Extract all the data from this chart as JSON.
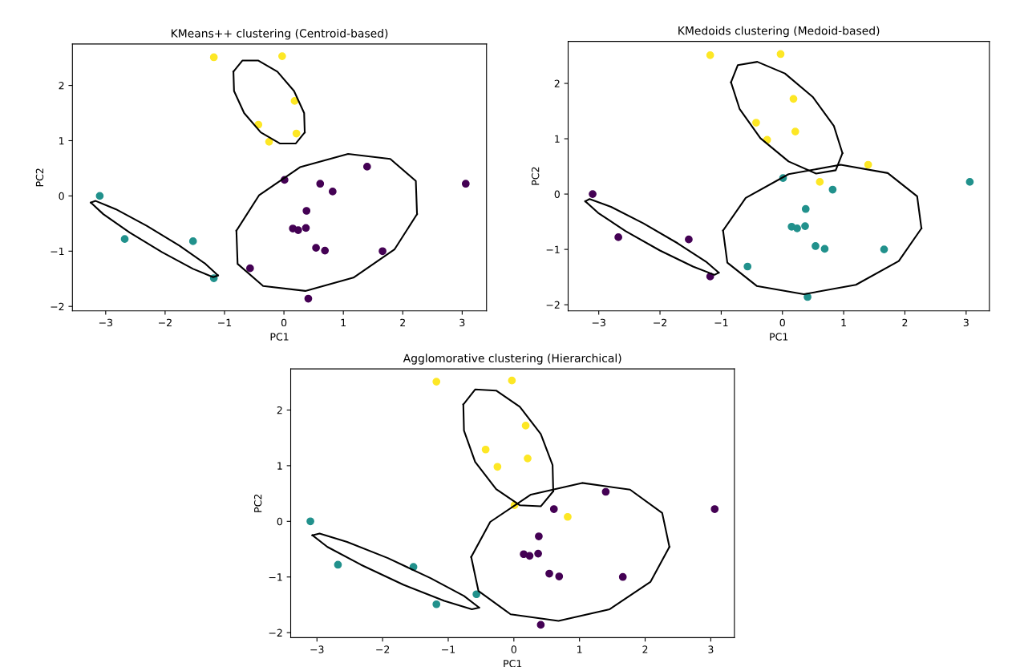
{
  "chart_data": [
    {
      "type": "scatter",
      "title": "KMeans++ clustering (Centroid-based)",
      "xlabel": "PC1",
      "ylabel": "PC2",
      "xlim": [
        -3.56,
        3.41
      ],
      "ylim": [
        -2.08,
        2.75
      ],
      "xticks": [
        -3,
        -2,
        -1,
        0,
        1,
        2,
        3
      ],
      "yticks": [
        -2,
        -1,
        0,
        1,
        2
      ],
      "grid": false,
      "marker": "circle",
      "series": [
        {
          "color": "#fde725",
          "x": [
            -1.18,
            -0.03,
            0.18,
            -0.43,
            0.21,
            -0.25
          ],
          "values": [
            2.51,
            2.53,
            1.72,
            1.29,
            1.13,
            0.98
          ]
        },
        {
          "color": "#21918c",
          "x": [
            -3.1,
            -2.68,
            -1.53,
            -1.18
          ],
          "values": [
            0.0,
            -0.78,
            -0.82,
            -1.49
          ]
        },
        {
          "color": "#440154",
          "x": [
            0.01,
            0.61,
            0.82,
            1.4,
            3.06,
            0.38,
            0.15,
            0.24,
            0.37,
            0.54,
            0.69,
            1.66,
            -0.57,
            0.41
          ],
          "values": [
            0.29,
            0.22,
            0.08,
            0.53,
            0.22,
            -0.27,
            -0.59,
            -0.62,
            -0.58,
            -0.94,
            -0.99,
            -1.0,
            -1.31,
            -1.86
          ]
        },
        {
          "type": "line",
          "color": "#000000",
          "line_style": "solid",
          "marker": "none",
          "x": [
            -0.85,
            -0.7,
            -0.43,
            -0.11,
            0.17,
            0.34,
            0.35
          ],
          "values": [
            2.25,
            2.45,
            2.45,
            2.25,
            1.9,
            1.5,
            1.15
          ]
        },
        {
          "type": "line",
          "color": "#000000",
          "line_style": "solid",
          "marker": "none",
          "x": [
            -0.85,
            -0.84,
            -0.67,
            -0.39,
            -0.07,
            0.2,
            0.35
          ],
          "values": [
            2.25,
            1.9,
            1.5,
            1.15,
            0.95,
            0.95,
            1.15
          ]
        },
        {
          "type": "line",
          "color": "#000000",
          "line_style": "solid",
          "marker": "none",
          "x": [
            -3.25,
            -3.17,
            -2.83,
            -2.31,
            -1.76,
            -1.32,
            -1.11
          ],
          "values": [
            -0.12,
            -0.09,
            -0.24,
            -0.54,
            -0.9,
            -1.23,
            -1.44
          ]
        },
        {
          "type": "line",
          "color": "#000000",
          "line_style": "solid",
          "marker": "none",
          "x": [
            -3.25,
            -3.04,
            -2.6,
            -2.05,
            -1.53,
            -1.19,
            -1.11
          ],
          "values": [
            -0.12,
            -0.33,
            -0.66,
            -1.02,
            -1.32,
            -1.47,
            -1.44
          ]
        },
        {
          "type": "line",
          "color": "#000000",
          "line_style": "solid",
          "marker": "none",
          "x": [
            -0.8,
            -0.42,
            0.27,
            1.08,
            1.79,
            2.22,
            2.24
          ],
          "values": [
            -0.63,
            0.01,
            0.52,
            0.76,
            0.67,
            0.27,
            -0.33
          ]
        },
        {
          "type": "line",
          "color": "#000000",
          "line_style": "solid",
          "marker": "none",
          "x": [
            -0.8,
            -0.78,
            -0.35,
            0.36,
            1.17,
            1.86,
            2.24
          ],
          "values": [
            -0.63,
            -1.23,
            -1.63,
            -1.72,
            -1.48,
            -0.97,
            -0.33
          ]
        }
      ]
    },
    {
      "type": "scatter",
      "title": "KMedoids clustering (Medoid-based)",
      "xlabel": "PC1",
      "ylabel": "PC2",
      "xlim": [
        -3.5,
        3.38
      ],
      "ylim": [
        -2.11,
        2.76
      ],
      "xticks": [
        -3,
        -2,
        -1,
        0,
        1,
        2,
        3
      ],
      "yticks": [
        -2,
        -1,
        0,
        1,
        2
      ],
      "grid": false,
      "marker": "circle",
      "series": [
        {
          "color": "#fde725",
          "x": [
            -1.18,
            -0.03,
            0.18,
            -0.43,
            0.21,
            -0.25,
            1.4,
            0.61
          ],
          "values": [
            2.51,
            2.53,
            1.72,
            1.29,
            1.13,
            0.98,
            0.53,
            0.22
          ]
        },
        {
          "color": "#21918c",
          "x": [
            0.01,
            0.82,
            3.06,
            0.38,
            0.15,
            0.24,
            0.37,
            0.54,
            0.69,
            1.66,
            -0.57,
            0.41
          ],
          "values": [
            0.29,
            0.08,
            0.22,
            -0.27,
            -0.59,
            -0.62,
            -0.58,
            -0.94,
            -0.99,
            -1.0,
            -1.31,
            -1.86
          ]
        },
        {
          "color": "#440154",
          "x": [
            -3.1,
            -2.68,
            -1.53,
            -1.18
          ],
          "values": [
            0.0,
            -0.78,
            -0.82,
            -1.49
          ]
        },
        {
          "type": "line",
          "color": "#000000",
          "line_style": "solid",
          "marker": "none",
          "x": [
            -0.84,
            -0.73,
            -0.41,
            0.04,
            0.5,
            0.84,
            0.98
          ],
          "values": [
            2.02,
            2.33,
            2.39,
            2.18,
            1.75,
            1.23,
            0.74
          ]
        },
        {
          "type": "line",
          "color": "#000000",
          "line_style": "solid",
          "marker": "none",
          "x": [
            -0.84,
            -0.7,
            -0.36,
            0.1,
            0.55,
            0.87,
            0.98
          ],
          "values": [
            2.02,
            1.54,
            1.01,
            0.59,
            0.37,
            0.43,
            0.74
          ]
        },
        {
          "type": "line",
          "color": "#000000",
          "line_style": "solid",
          "marker": "none",
          "x": [
            -3.22,
            -3.15,
            -2.8,
            -2.27,
            -1.71,
            -1.25,
            -1.04
          ],
          "values": [
            -0.13,
            -0.09,
            -0.23,
            -0.53,
            -0.89,
            -1.22,
            -1.42
          ]
        },
        {
          "type": "line",
          "color": "#000000",
          "line_style": "solid",
          "marker": "none",
          "x": [
            -3.22,
            -3.01,
            -2.56,
            -2.0,
            -1.46,
            -1.11,
            -1.04
          ],
          "values": [
            -0.13,
            -0.34,
            -0.67,
            -1.02,
            -1.31,
            -1.46,
            -1.42
          ]
        },
        {
          "type": "line",
          "color": "#000000",
          "line_style": "solid",
          "marker": "none",
          "x": [
            -0.97,
            -0.6,
            0.1,
            0.95,
            1.72,
            2.2,
            2.27
          ],
          "values": [
            -0.66,
            -0.07,
            0.36,
            0.53,
            0.38,
            -0.04,
            -0.62
          ]
        },
        {
          "type": "line",
          "color": "#000000",
          "line_style": "solid",
          "marker": "none",
          "x": [
            -0.97,
            -0.9,
            -0.42,
            0.35,
            1.2,
            1.9,
            2.27
          ],
          "values": [
            -0.66,
            -1.24,
            -1.66,
            -1.81,
            -1.64,
            -1.21,
            -0.62
          ]
        }
      ]
    },
    {
      "type": "scatter",
      "title": "Agglomorative clustering (Hierarchical)",
      "xlabel": "PC1",
      "ylabel": "PC2",
      "xlim": [
        -3.4,
        3.36
      ],
      "ylim": [
        -2.09,
        2.74
      ],
      "xticks": [
        -3,
        -2,
        -1,
        0,
        1,
        2,
        3
      ],
      "yticks": [
        -2,
        -1,
        0,
        1,
        2
      ],
      "grid": false,
      "marker": "circle",
      "series": [
        {
          "color": "#fde725",
          "x": [
            -1.18,
            -0.03,
            0.18,
            -0.43,
            0.21,
            -0.25,
            0.01,
            0.82
          ],
          "values": [
            2.51,
            2.53,
            1.72,
            1.29,
            1.13,
            0.98,
            0.29,
            0.08
          ]
        },
        {
          "color": "#21918c",
          "x": [
            -3.1,
            -2.68,
            -1.53,
            -1.18,
            -0.57
          ],
          "values": [
            0.0,
            -0.78,
            -0.82,
            -1.49,
            -1.31
          ]
        },
        {
          "color": "#440154",
          "x": [
            0.61,
            1.4,
            3.06,
            0.38,
            0.15,
            0.24,
            0.37,
            0.54,
            0.69,
            1.66,
            0.41
          ],
          "values": [
            0.22,
            0.53,
            0.22,
            -0.27,
            -0.59,
            -0.62,
            -0.58,
            -0.94,
            -0.99,
            -1.0,
            -1.86
          ]
        },
        {
          "type": "line",
          "color": "#000000",
          "line_style": "solid",
          "marker": "none",
          "x": [
            -0.77,
            -0.59,
            -0.27,
            0.09,
            0.41,
            0.59,
            0.6
          ],
          "values": [
            2.1,
            2.37,
            2.35,
            2.06,
            1.57,
            1.01,
            0.54
          ]
        },
        {
          "type": "line",
          "color": "#000000",
          "line_style": "solid",
          "marker": "none",
          "x": [
            -0.77,
            -0.76,
            -0.59,
            -0.27,
            0.09,
            0.41,
            0.6
          ],
          "values": [
            2.1,
            1.63,
            1.07,
            0.58,
            0.29,
            0.27,
            0.54
          ]
        },
        {
          "type": "line",
          "color": "#000000",
          "line_style": "solid",
          "marker": "none",
          "x": [
            -3.07,
            -2.96,
            -2.54,
            -1.92,
            -1.27,
            -0.76,
            -0.53
          ],
          "values": [
            -0.25,
            -0.22,
            -0.37,
            -0.66,
            -1.02,
            -1.34,
            -1.55
          ]
        },
        {
          "type": "line",
          "color": "#000000",
          "line_style": "solid",
          "marker": "none",
          "x": [
            -3.07,
            -2.84,
            -2.33,
            -1.68,
            -1.06,
            -0.64,
            -0.53
          ],
          "values": [
            -0.25,
            -0.46,
            -0.78,
            -1.14,
            -1.43,
            -1.58,
            -1.55
          ]
        },
        {
          "type": "line",
          "color": "#000000",
          "line_style": "solid",
          "marker": "none",
          "x": [
            -0.65,
            -0.36,
            0.26,
            1.04,
            1.77,
            2.26,
            2.37
          ],
          "values": [
            -0.64,
            -0.01,
            0.48,
            0.69,
            0.57,
            0.15,
            -0.46
          ]
        },
        {
          "type": "line",
          "color": "#000000",
          "line_style": "solid",
          "marker": "none",
          "x": [
            -0.65,
            -0.54,
            -0.05,
            0.68,
            1.46,
            2.08,
            2.37
          ],
          "values": [
            -0.64,
            -1.25,
            -1.67,
            -1.79,
            -1.58,
            -1.09,
            -0.46
          ]
        }
      ]
    }
  ]
}
